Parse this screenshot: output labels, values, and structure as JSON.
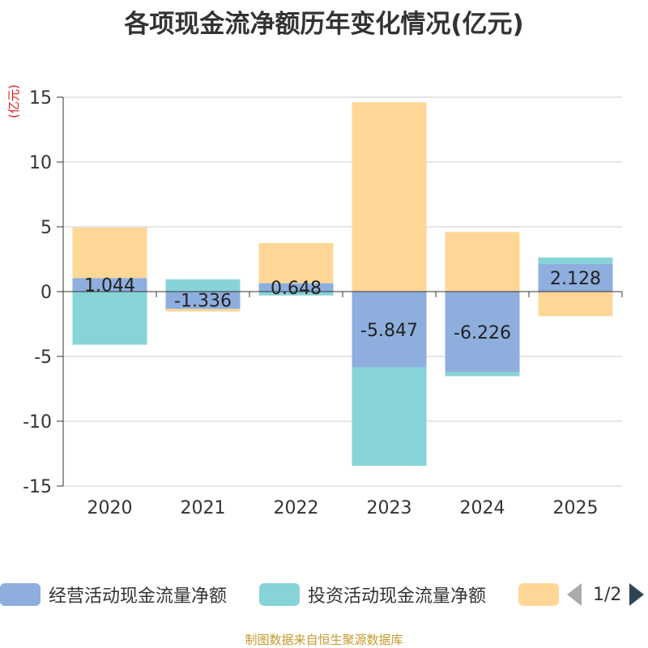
{
  "chart_data": {
    "type": "bar",
    "stacked": true,
    "title": "各项现金流净额历年变化情况(亿元)",
    "ylabel": "(亿元)",
    "xlabel": "",
    "categories": [
      "2020",
      "2021",
      "2022",
      "2023",
      "2024",
      "2025"
    ],
    "ylim": [
      -15,
      15
    ],
    "yticks": [
      15,
      10,
      5,
      0,
      -5,
      -10,
      -15
    ],
    "series": [
      {
        "name": "经营活动现金流量净额",
        "color": "#8eaedd",
        "values": [
          1.044,
          -1.336,
          0.648,
          -5.847,
          -6.226,
          2.128
        ],
        "labels": [
          "1.044",
          "-1.336",
          "0.648",
          "-5.847",
          "-6.226",
          "2.128"
        ]
      },
      {
        "name": "投资活动现金流量净额",
        "color": "#87d4d8",
        "values": [
          -4.1,
          0.95,
          -0.3,
          -7.6,
          -0.3,
          0.5
        ]
      },
      {
        "name": "",
        "color": "#fed797",
        "values": [
          3.9,
          -0.2,
          3.1,
          14.6,
          4.6,
          -1.9
        ]
      }
    ]
  },
  "legend": {
    "items": [
      {
        "label": "经营活动现金流量净额",
        "color": "#8eaedd"
      },
      {
        "label": "投资活动现金流量净额",
        "color": "#87d4d8"
      },
      {
        "label": "",
        "color": "#fed797"
      }
    ],
    "page": "1/2"
  },
  "footer": "制图数据来自恒生聚源数据库"
}
